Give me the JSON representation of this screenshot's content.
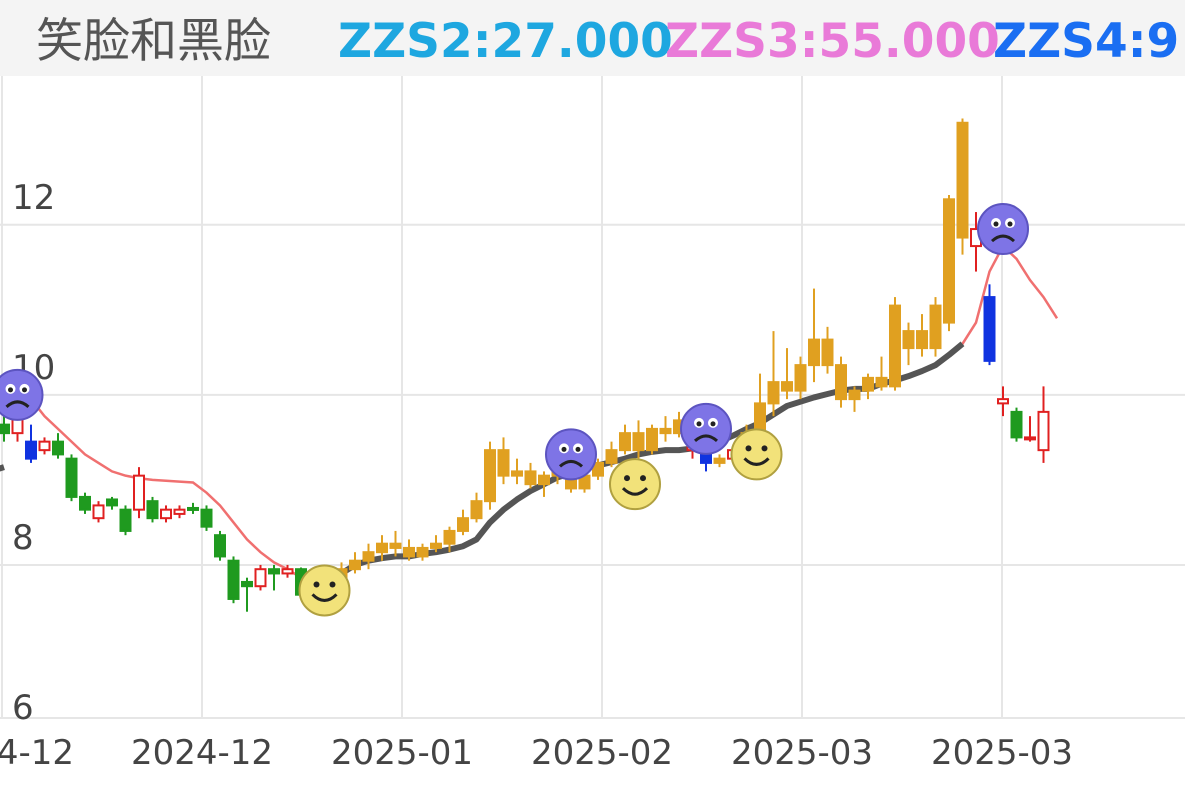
{
  "header": {
    "title": "笑脸和黑脸",
    "indicators": [
      {
        "label": "ZZS2:27.000",
        "color": "#1ea7e0"
      },
      {
        "label": "ZZS3:55.000",
        "color": "#e97ad8"
      },
      {
        "label": "ZZS4:9",
        "color": "#1a6ef2"
      }
    ]
  },
  "chart_data": {
    "type": "candlestick",
    "title": "",
    "y_axis": {
      "ticks": [
        "6",
        "8",
        "10",
        "12"
      ],
      "range": [
        5.85,
        13.4
      ]
    },
    "x_axis": {
      "ticks": [
        "4-12",
        "2024-12",
        "2025-01",
        "2025-02",
        "2025-03",
        "2025-03"
      ]
    },
    "grid": true,
    "colors": {
      "up": "#e02020",
      "down": "#1f9a1f",
      "highlight": "#e0a020",
      "blue": "#1033e0",
      "ma_dark": "#555555",
      "ma_red": "#f07070"
    },
    "candles": [
      {
        "o": 9.3,
        "h": 9.4,
        "l": 9.1,
        "c": 9.2,
        "s": "down"
      },
      {
        "o": 9.2,
        "h": 9.5,
        "l": 9.1,
        "c": 9.45,
        "s": "up"
      },
      {
        "o": 9.1,
        "h": 9.3,
        "l": 8.85,
        "c": 8.9,
        "s": "blue"
      },
      {
        "o": 9.0,
        "h": 9.15,
        "l": 8.95,
        "c": 9.1,
        "s": "up"
      },
      {
        "o": 9.1,
        "h": 9.2,
        "l": 8.9,
        "c": 8.95,
        "s": "down"
      },
      {
        "o": 8.9,
        "h": 8.95,
        "l": 8.4,
        "c": 8.45,
        "s": "down"
      },
      {
        "o": 8.45,
        "h": 8.5,
        "l": 8.25,
        "c": 8.3,
        "s": "down"
      },
      {
        "o": 8.2,
        "h": 8.4,
        "l": 8.15,
        "c": 8.35,
        "s": "up"
      },
      {
        "o": 8.35,
        "h": 8.45,
        "l": 8.3,
        "c": 8.42,
        "s": "down"
      },
      {
        "o": 8.3,
        "h": 8.35,
        "l": 8.0,
        "c": 8.05,
        "s": "down"
      },
      {
        "o": 8.3,
        "h": 8.8,
        "l": 8.2,
        "c": 8.7,
        "s": "up"
      },
      {
        "o": 8.4,
        "h": 8.45,
        "l": 8.15,
        "c": 8.2,
        "s": "down"
      },
      {
        "o": 8.2,
        "h": 8.35,
        "l": 8.15,
        "c": 8.3,
        "s": "up"
      },
      {
        "o": 8.25,
        "h": 8.35,
        "l": 8.2,
        "c": 8.3,
        "s": "up"
      },
      {
        "o": 8.3,
        "h": 8.38,
        "l": 8.25,
        "c": 8.32,
        "s": "down"
      },
      {
        "o": 8.3,
        "h": 8.35,
        "l": 8.05,
        "c": 8.1,
        "s": "down"
      },
      {
        "o": 8.0,
        "h": 8.05,
        "l": 7.7,
        "c": 7.75,
        "s": "down"
      },
      {
        "o": 7.7,
        "h": 7.75,
        "l": 7.2,
        "c": 7.25,
        "s": "down"
      },
      {
        "o": 7.45,
        "h": 7.5,
        "l": 7.1,
        "c": 7.4,
        "s": "down"
      },
      {
        "o": 7.4,
        "h": 7.65,
        "l": 7.35,
        "c": 7.6,
        "s": "up"
      },
      {
        "o": 7.6,
        "h": 7.65,
        "l": 7.35,
        "c": 7.55,
        "s": "down"
      },
      {
        "o": 7.55,
        "h": 7.65,
        "l": 7.5,
        "c": 7.6,
        "s": "up"
      },
      {
        "o": 7.6,
        "h": 7.62,
        "l": 7.25,
        "c": 7.3,
        "s": "down"
      },
      {
        "o": 7.3,
        "h": 7.5,
        "l": 7.25,
        "c": 7.45,
        "s": "highlight"
      },
      {
        "o": 7.45,
        "h": 7.6,
        "l": 7.4,
        "c": 7.55,
        "s": "highlight"
      },
      {
        "o": 7.5,
        "h": 7.68,
        "l": 7.45,
        "c": 7.6,
        "s": "highlight"
      },
      {
        "o": 7.6,
        "h": 7.8,
        "l": 7.55,
        "c": 7.7,
        "s": "highlight"
      },
      {
        "o": 7.7,
        "h": 7.9,
        "l": 7.6,
        "c": 7.8,
        "s": "highlight"
      },
      {
        "o": 7.8,
        "h": 8.0,
        "l": 7.7,
        "c": 7.9,
        "s": "highlight"
      },
      {
        "o": 7.9,
        "h": 8.05,
        "l": 7.75,
        "c": 7.85,
        "s": "highlight"
      },
      {
        "o": 7.85,
        "h": 7.95,
        "l": 7.7,
        "c": 7.75,
        "s": "highlight"
      },
      {
        "o": 7.75,
        "h": 7.9,
        "l": 7.7,
        "c": 7.85,
        "s": "highlight"
      },
      {
        "o": 7.85,
        "h": 8.0,
        "l": 7.8,
        "c": 7.9,
        "s": "highlight"
      },
      {
        "o": 7.9,
        "h": 8.1,
        "l": 7.8,
        "c": 8.05,
        "s": "highlight"
      },
      {
        "o": 8.05,
        "h": 8.3,
        "l": 8.0,
        "c": 8.2,
        "s": "highlight"
      },
      {
        "o": 8.2,
        "h": 8.5,
        "l": 8.15,
        "c": 8.4,
        "s": "highlight"
      },
      {
        "o": 8.4,
        "h": 9.1,
        "l": 8.3,
        "c": 9.0,
        "s": "highlight"
      },
      {
        "o": 9.0,
        "h": 9.15,
        "l": 8.6,
        "c": 8.7,
        "s": "highlight"
      },
      {
        "o": 8.7,
        "h": 8.9,
        "l": 8.6,
        "c": 8.75,
        "s": "highlight"
      },
      {
        "o": 8.75,
        "h": 8.85,
        "l": 8.55,
        "c": 8.6,
        "s": "highlight"
      },
      {
        "o": 8.6,
        "h": 8.75,
        "l": 8.45,
        "c": 8.7,
        "s": "highlight"
      },
      {
        "o": 8.7,
        "h": 8.85,
        "l": 8.6,
        "c": 8.8,
        "s": "highlight"
      },
      {
        "o": 8.8,
        "h": 8.9,
        "l": 8.5,
        "c": 8.55,
        "s": "highlight"
      },
      {
        "o": 8.55,
        "h": 8.75,
        "l": 8.5,
        "c": 8.7,
        "s": "highlight"
      },
      {
        "o": 8.7,
        "h": 8.9,
        "l": 8.65,
        "c": 8.85,
        "s": "highlight"
      },
      {
        "o": 8.85,
        "h": 9.1,
        "l": 8.8,
        "c": 9.0,
        "s": "highlight"
      },
      {
        "o": 9.0,
        "h": 9.3,
        "l": 8.95,
        "c": 9.2,
        "s": "highlight"
      },
      {
        "o": 9.2,
        "h": 9.35,
        "l": 8.9,
        "c": 9.0,
        "s": "highlight"
      },
      {
        "o": 9.0,
        "h": 9.3,
        "l": 8.95,
        "c": 9.25,
        "s": "highlight"
      },
      {
        "o": 9.25,
        "h": 9.4,
        "l": 9.1,
        "c": 9.2,
        "s": "highlight"
      },
      {
        "o": 9.2,
        "h": 9.45,
        "l": 9.15,
        "c": 9.35,
        "s": "highlight"
      },
      {
        "o": 9.1,
        "h": 9.25,
        "l": 8.9,
        "c": 9.0,
        "s": "up"
      },
      {
        "o": 9.0,
        "h": 9.1,
        "l": 8.75,
        "c": 8.85,
        "s": "blue"
      },
      {
        "o": 8.85,
        "h": 8.95,
        "l": 8.8,
        "c": 8.9,
        "s": "highlight"
      },
      {
        "o": 8.9,
        "h": 9.05,
        "l": 8.85,
        "c": 9.0,
        "s": "up"
      },
      {
        "o": 9.0,
        "h": 9.3,
        "l": 8.95,
        "c": 9.2,
        "s": "highlight"
      },
      {
        "o": 9.2,
        "h": 9.9,
        "l": 9.1,
        "c": 9.55,
        "s": "highlight"
      },
      {
        "o": 9.55,
        "h": 10.4,
        "l": 9.4,
        "c": 9.8,
        "s": "highlight"
      },
      {
        "o": 9.8,
        "h": 10.2,
        "l": 9.6,
        "c": 9.7,
        "s": "highlight"
      },
      {
        "o": 9.7,
        "h": 10.1,
        "l": 9.6,
        "c": 10.0,
        "s": "highlight"
      },
      {
        "o": 10.0,
        "h": 10.9,
        "l": 9.8,
        "c": 10.3,
        "s": "highlight"
      },
      {
        "o": 10.3,
        "h": 10.45,
        "l": 9.9,
        "c": 10.0,
        "s": "highlight"
      },
      {
        "o": 10.0,
        "h": 10.1,
        "l": 9.5,
        "c": 9.6,
        "s": "highlight"
      },
      {
        "o": 9.6,
        "h": 9.75,
        "l": 9.45,
        "c": 9.7,
        "s": "highlight"
      },
      {
        "o": 9.7,
        "h": 9.9,
        "l": 9.6,
        "c": 9.85,
        "s": "highlight"
      },
      {
        "o": 9.85,
        "h": 10.1,
        "l": 9.7,
        "c": 9.75,
        "s": "highlight"
      },
      {
        "o": 9.75,
        "h": 10.8,
        "l": 9.7,
        "c": 10.7,
        "s": "highlight"
      },
      {
        "o": 10.2,
        "h": 10.5,
        "l": 10.0,
        "c": 10.4,
        "s": "highlight"
      },
      {
        "o": 10.4,
        "h": 10.6,
        "l": 10.1,
        "c": 10.2,
        "s": "highlight"
      },
      {
        "o": 10.2,
        "h": 10.8,
        "l": 10.1,
        "c": 10.7,
        "s": "highlight"
      },
      {
        "o": 10.5,
        "h": 12.0,
        "l": 10.4,
        "c": 11.95,
        "s": "highlight"
      },
      {
        "o": 11.5,
        "h": 12.9,
        "l": 11.3,
        "c": 12.85,
        "s": "highlight"
      },
      {
        "o": 11.6,
        "h": 11.8,
        "l": 11.1,
        "c": 11.4,
        "s": "up"
      },
      {
        "o": 10.8,
        "h": 10.95,
        "l": 10.0,
        "c": 10.05,
        "s": "blue"
      },
      {
        "o": 9.6,
        "h": 9.75,
        "l": 9.4,
        "c": 9.55,
        "s": "up"
      },
      {
        "o": 9.45,
        "h": 9.5,
        "l": 9.1,
        "c": 9.15,
        "s": "down"
      },
      {
        "o": 9.15,
        "h": 9.4,
        "l": 9.1,
        "c": 9.15,
        "s": "up"
      },
      {
        "o": 9.0,
        "h": 9.75,
        "l": 8.85,
        "c": 9.45,
        "s": "up"
      }
    ],
    "ma_dark": [
      9.05,
      9.1,
      9.15,
      9.2,
      9.25,
      9.3,
      9.3,
      9.3,
      9.3,
      9.3,
      9.3,
      9.3,
      9.3,
      9.3,
      9.3,
      9.3,
      9.3,
      9.3,
      9.3,
      9.3,
      9.3,
      9.3,
      9.3,
      7.45,
      7.47,
      7.55,
      7.65,
      7.7,
      7.73,
      7.75,
      7.75,
      7.78,
      7.8,
      7.83,
      7.87,
      7.95,
      8.15,
      8.3,
      8.42,
      8.52,
      8.6,
      8.68,
      8.73,
      8.78,
      8.82,
      8.86,
      8.9,
      8.95,
      8.98,
      9.0,
      9.0,
      9.02,
      9.05,
      9.1,
      9.17,
      9.25,
      9.32,
      9.42,
      9.52,
      9.57,
      9.62,
      9.66,
      9.7,
      9.72,
      9.72,
      9.78,
      9.82,
      9.87,
      9.93,
      10.0,
      10.12,
      10.25
    ],
    "ma_red": [
      9.55,
      9.58,
      9.6,
      9.4,
      9.25,
      9.1,
      8.95,
      8.85,
      8.75,
      8.7,
      8.67,
      8.65,
      8.64,
      8.63,
      8.62,
      8.5,
      8.35,
      8.15,
      7.95,
      7.8,
      7.68,
      7.6,
      7.5,
      7.45,
      7.47,
      7.55,
      7.65,
      7.7,
      7.73,
      7.75,
      7.75,
      7.78,
      7.8,
      7.83,
      7.87,
      7.95,
      8.15,
      8.3,
      8.42,
      8.52,
      8.6,
      8.68,
      8.73,
      8.78,
      8.82,
      8.86,
      8.9,
      8.95,
      8.98,
      9.0,
      9.0,
      9.02,
      9.05,
      9.1,
      9.17,
      9.25,
      9.32,
      9.42,
      9.52,
      9.57,
      9.62,
      9.66,
      9.7,
      9.72,
      9.72,
      9.78,
      9.82,
      9.87,
      9.93,
      10.0,
      10.12,
      10.25,
      10.5,
      11.1,
      11.4,
      11.25,
      11.0,
      10.8,
      10.55
    ],
    "markers": [
      {
        "type": "frown",
        "index": 1,
        "value": 9.65
      },
      {
        "type": "smile",
        "index": 23,
        "value": 7.35
      },
      {
        "type": "frown",
        "index": 42,
        "value": 8.95
      },
      {
        "type": "smile",
        "index": 46,
        "value": 8.6
      },
      {
        "type": "frown",
        "index": 52,
        "value": 9.25
      },
      {
        "type": "smile",
        "index": 55,
        "value": 8.95
      },
      {
        "type": "frown",
        "index": 74,
        "value": 11.6
      }
    ]
  }
}
